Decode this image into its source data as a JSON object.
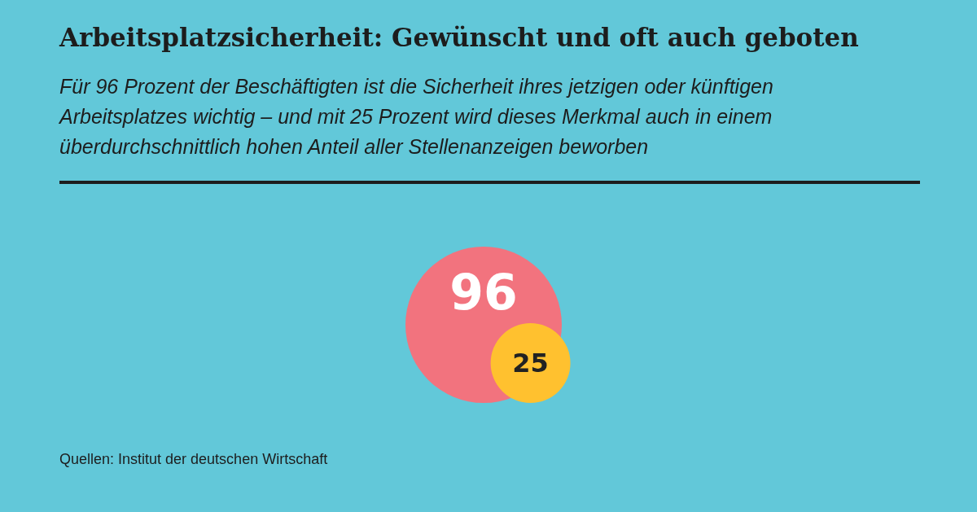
{
  "chart_data": {
    "type": "other",
    "title": "Arbeitsplatzsicherheit: Gewünscht und oft auch geboten",
    "subtitle": "Für 96 Prozent der Beschäftigten ist die Sicherheit ihres jetzigen oder künftigen Arbeitsplatzes wichtig – und mit 25 Prozent wird dieses Merkmal auch in einem überdurchschnittlich hohen Anteil aller Stellenanzeigen beworben",
    "values": [
      96,
      25
    ],
    "colors": [
      "#f2737e",
      "#ffc12f"
    ],
    "data_labels": true,
    "annotations": [
      "Quellen: Institut der deutschen Wirtschaft"
    ]
  }
}
